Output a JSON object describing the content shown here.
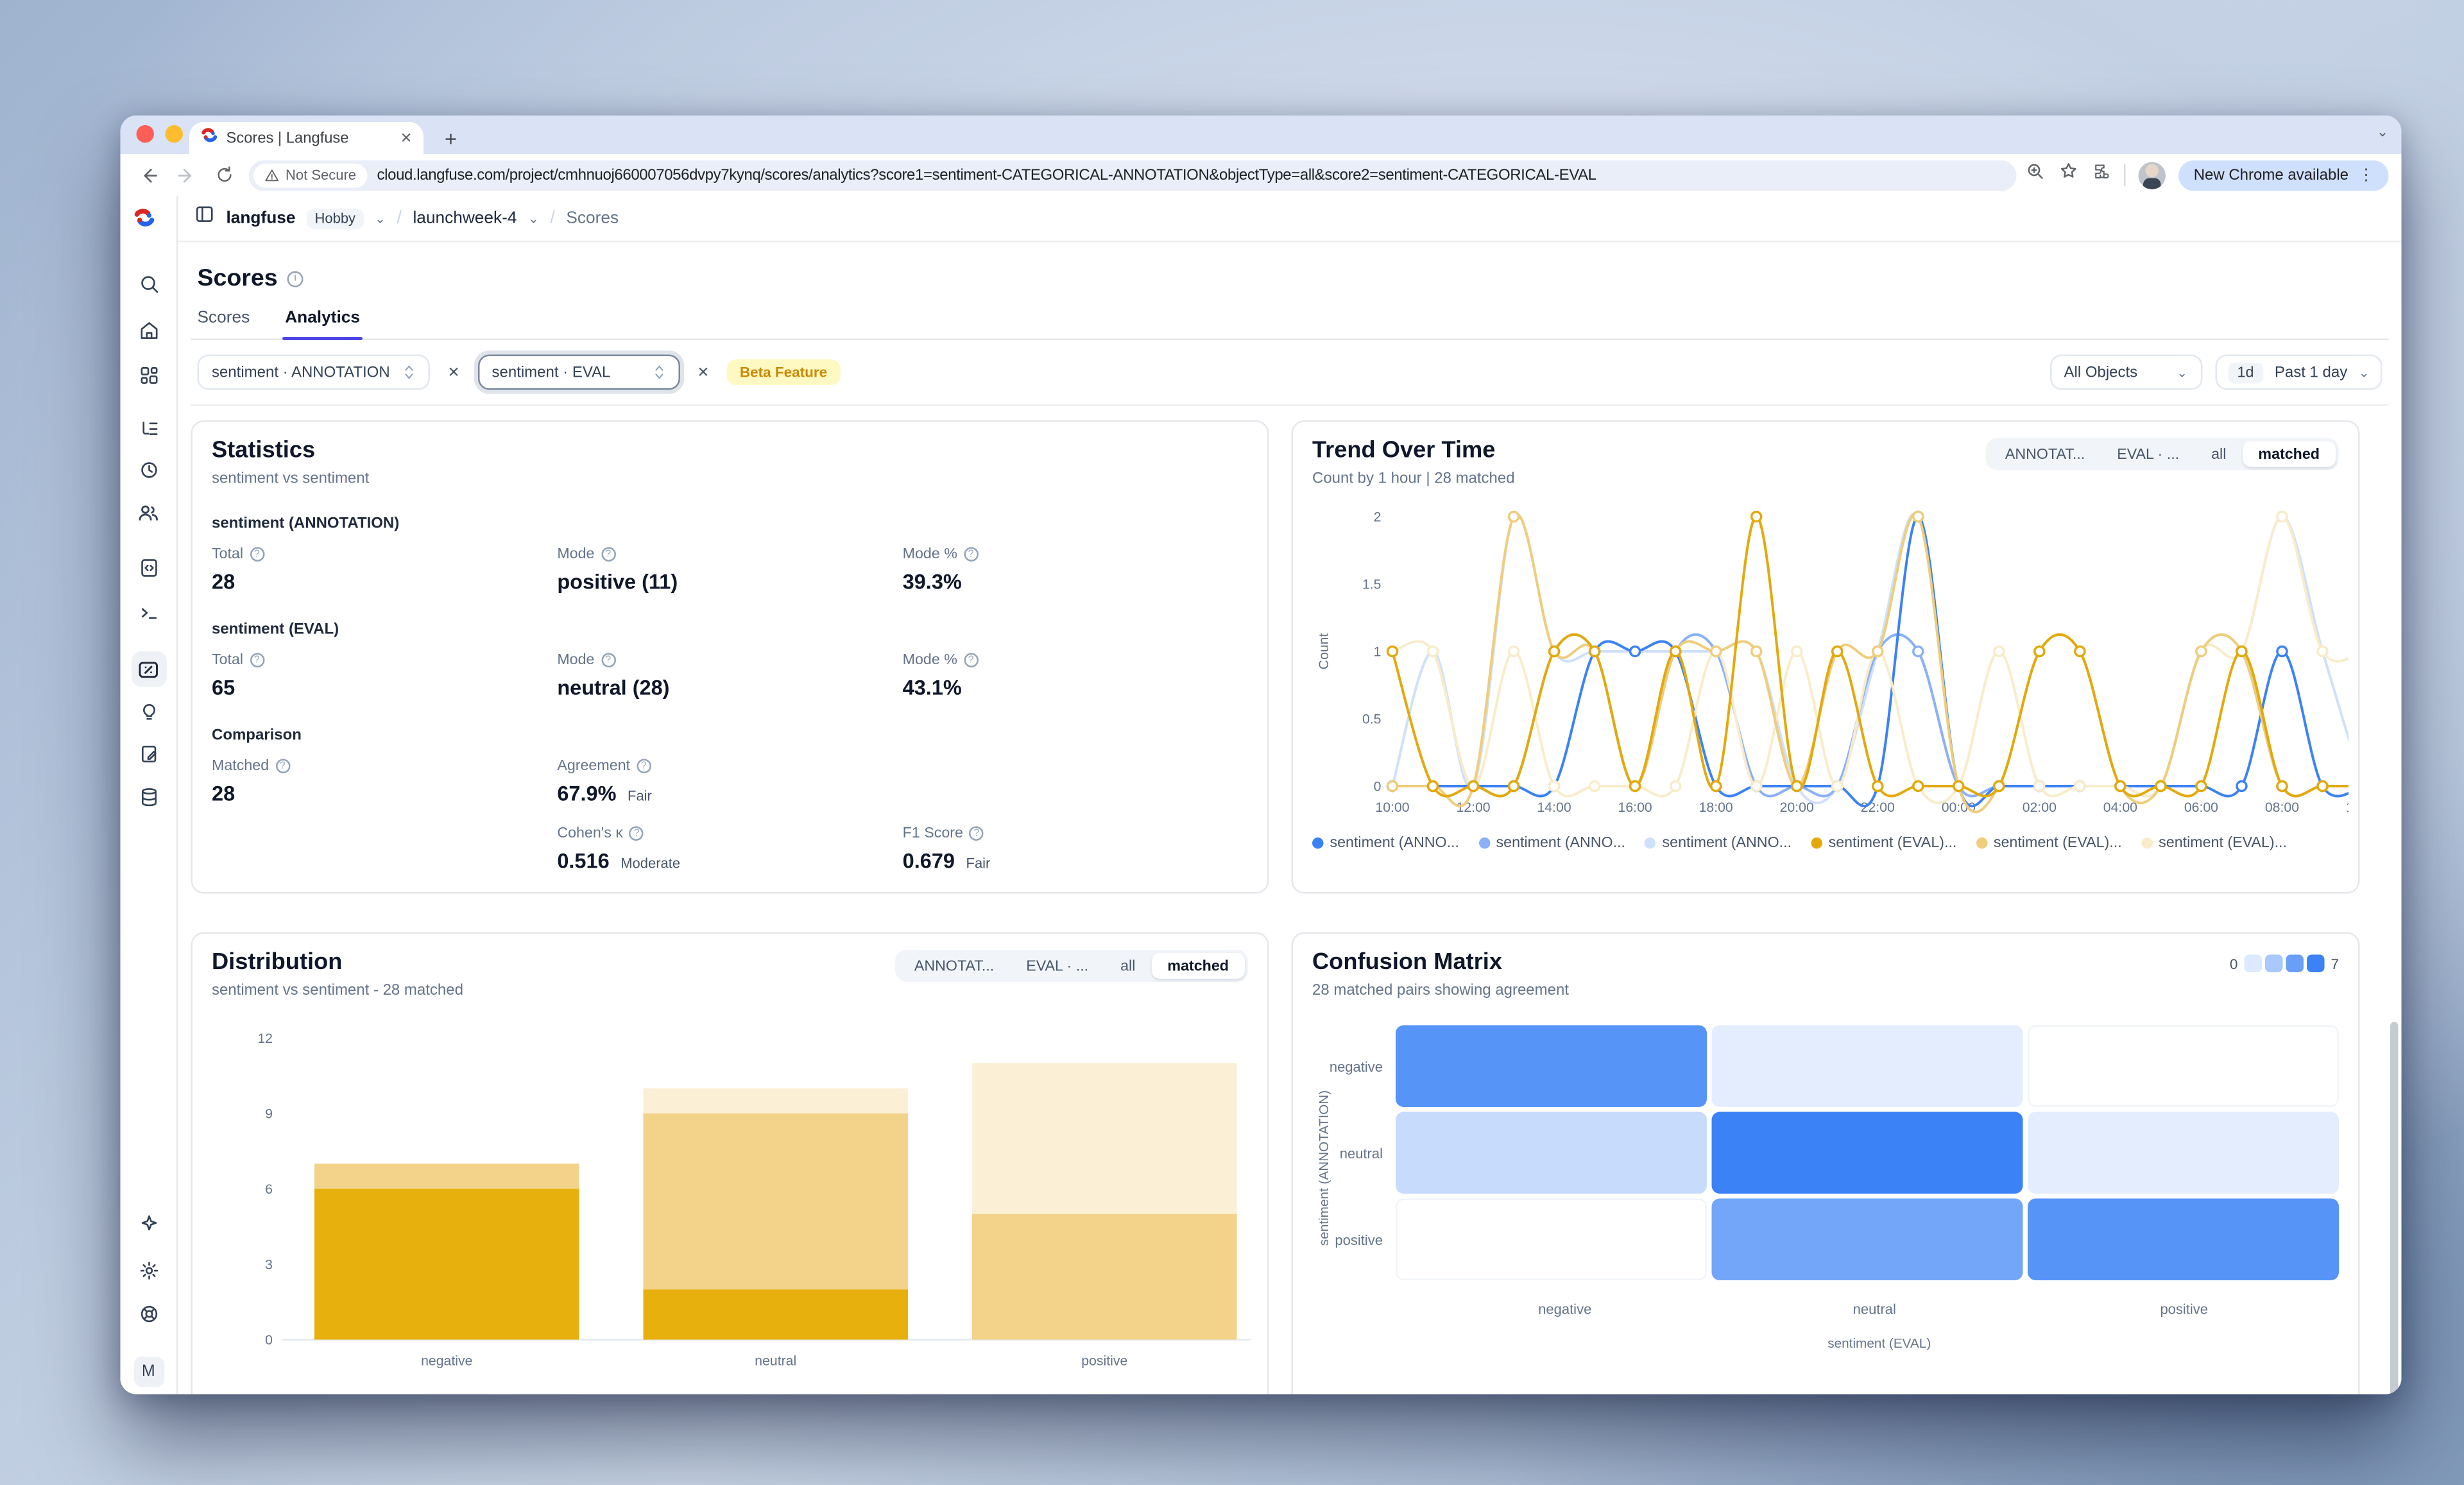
{
  "browser": {
    "tab": {
      "title": "Scores | Langfuse",
      "close_glyph": "✕",
      "new_tab_glyph": "+"
    },
    "toolbar": {
      "security_chip": "Not Secure",
      "url": "cloud.langfuse.com/project/cmhnuoj660007056dvpy7kynq/scores/analytics?score1=sentiment-CATEGORICAL-ANNOTATION&objectType=all&score2=sentiment-CATEGORICAL-EVAL",
      "update_pill": "New Chrome available"
    }
  },
  "nav": {
    "org": "langfuse",
    "plan_badge": "Hobby",
    "separator": "/",
    "project": "launchweek-4",
    "page": "Scores"
  },
  "sidebar": {
    "icons": [
      "search",
      "home",
      "dashboards",
      "tracing",
      "sessions",
      "users",
      "prompts",
      "playground",
      "scores",
      "evals",
      "annotation",
      "datasets",
      "upgrade-sparkle",
      "settings",
      "support"
    ],
    "avatar": "M"
  },
  "page": {
    "title": "Scores",
    "tabs": [
      {
        "label": "Scores",
        "active": false
      },
      {
        "label": "Analytics",
        "active": true
      }
    ]
  },
  "filters": {
    "score1": "sentiment · ANNOTATION",
    "score2": "sentiment · EVAL",
    "remove_glyph": "✕",
    "beta_badge": "Beta Feature",
    "object_select": "All Objects",
    "time_chip": "1d",
    "time_range": "Past 1 day"
  },
  "score_toggle": {
    "options": [
      "ANNOTAT...",
      "EVAL · ...",
      "all",
      "matched"
    ],
    "active": "matched"
  },
  "statistics": {
    "title": "Statistics",
    "subtitle": "sentiment vs sentiment",
    "sections": [
      {
        "heading": "sentiment (ANNOTATION)",
        "metrics": [
          {
            "label": "Total",
            "value": "28",
            "slot": 0
          },
          {
            "label": "Mode",
            "value": "positive (11)",
            "slot": 1
          },
          {
            "label": "Mode %",
            "value": "39.3%",
            "slot": 2
          }
        ]
      },
      {
        "heading": "sentiment (EVAL)",
        "metrics": [
          {
            "label": "Total",
            "value": "65",
            "slot": 0
          },
          {
            "label": "Mode",
            "value": "neutral (28)",
            "slot": 1
          },
          {
            "label": "Mode %",
            "value": "43.1%",
            "slot": 2
          }
        ]
      },
      {
        "heading": "Comparison",
        "metrics": [
          {
            "label": "Matched",
            "value": "28",
            "slot": 0
          },
          {
            "label": "Agreement",
            "value": "67.9%",
            "qualifier": "Fair",
            "slot": 1
          },
          {
            "label": "Cohen's κ",
            "value": "0.516",
            "qualifier": "Moderate",
            "slot": 4
          },
          {
            "label": "F1 Score",
            "value": "0.679",
            "qualifier": "Fair",
            "slot": 5
          }
        ]
      }
    ]
  },
  "chart_data": [
    {
      "type": "line",
      "title": "Trend Over Time",
      "subtitle": "Count by 1 hour | 28 matched",
      "ylabel": "Count",
      "ylim": [
        0,
        2
      ],
      "yticks": [
        0,
        0.5,
        1,
        1.5,
        2
      ],
      "grid": false,
      "legend_position": "bottom",
      "x": [
        "10:00",
        "11:00",
        "12:00",
        "13:00",
        "14:00",
        "15:00",
        "16:00",
        "17:00",
        "18:00",
        "19:00",
        "20:00",
        "21:00",
        "22:00",
        "23:00",
        "00:00",
        "01:00",
        "02:00",
        "03:00",
        "04:00",
        "05:00",
        "06:00",
        "07:00",
        "08:00",
        "09:00",
        "10:00"
      ],
      "xtick_every": 2,
      "series": [
        {
          "name": "sentiment (ANNO...",
          "color": "#3b82f6",
          "values": [
            0,
            0,
            0,
            0,
            0,
            1,
            1,
            1,
            0,
            0,
            0,
            0,
            0,
            2,
            0,
            0,
            0,
            0,
            0,
            0,
            0,
            0,
            1,
            0,
            0
          ]
        },
        {
          "name": "sentiment (ANNO...",
          "color": "#8ab0f8",
          "values": [
            0,
            0,
            0,
            0,
            1,
            1,
            0,
            1,
            1,
            0,
            0,
            0,
            1,
            1,
            0,
            0,
            0,
            0,
            0,
            0,
            1,
            1,
            0,
            0,
            0
          ]
        },
        {
          "name": "sentiment (ANNO...",
          "color": "#cfe0fc",
          "values": [
            0,
            1,
            0,
            2,
            1,
            1,
            1,
            1,
            1,
            1,
            0,
            0,
            1,
            2,
            0,
            0,
            0,
            0,
            0,
            0,
            1,
            1,
            2,
            1,
            0
          ]
        },
        {
          "name": "sentiment (EVAL)...",
          "color": "#e3a90c",
          "values": [
            1,
            0,
            0,
            0,
            1,
            1,
            0,
            1,
            0,
            2,
            0,
            1,
            0,
            0,
            0,
            0,
            1,
            1,
            0,
            0,
            0,
            1,
            0,
            0,
            0
          ]
        },
        {
          "name": "sentiment (EVAL)...",
          "color": "#f0cd7a",
          "values": [
            0,
            0,
            0,
            2,
            1,
            1,
            0,
            1,
            1,
            1,
            0,
            1,
            1,
            2,
            0,
            0,
            1,
            1,
            0,
            0,
            1,
            1,
            0,
            0,
            0
          ]
        },
        {
          "name": "sentiment (EVAL)...",
          "color": "#f8ecca",
          "values": [
            1,
            1,
            0,
            1,
            0,
            0,
            0,
            0,
            1,
            0,
            1,
            0,
            1,
            0,
            0,
            1,
            0,
            0,
            0,
            0,
            1,
            1,
            2,
            1,
            1
          ]
        }
      ]
    },
    {
      "type": "bar",
      "stacked": true,
      "title": "Distribution",
      "subtitle": "sentiment vs sentiment - 28 matched",
      "categories": [
        "negative",
        "neutral",
        "positive"
      ],
      "series": [
        {
          "name": "negative",
          "color": "#e8b00d",
          "values": [
            6,
            2,
            0
          ]
        },
        {
          "name": "neutral",
          "color": "#f3d289",
          "values": [
            1,
            7,
            5
          ]
        },
        {
          "name": "positive",
          "color": "#fbf0d5",
          "values": [
            0,
            1,
            6
          ]
        }
      ],
      "ylim": [
        0,
        12
      ],
      "yticks": [
        0,
        3,
        6,
        9,
        12
      ],
      "grid": false,
      "legend_position": "bottom"
    },
    {
      "type": "heatmap",
      "title": "Confusion Matrix",
      "subtitle": "28 matched pairs showing agreement",
      "rows": [
        "negative",
        "neutral",
        "positive"
      ],
      "cols": [
        "negative",
        "neutral",
        "positive"
      ],
      "values": [
        [
          6,
          1,
          0
        ],
        [
          2,
          7,
          1
        ],
        [
          0,
          5,
          6
        ]
      ],
      "xlabel": "sentiment (EVAL)",
      "ylabel": "sentiment (ANNOTATION)",
      "scale": {
        "min": 0,
        "max": 7,
        "colors": [
          "#dbeafe",
          "#a9c8fb",
          "#699ff7",
          "#3b82f6"
        ],
        "max_color": "#3b82f6"
      }
    }
  ]
}
